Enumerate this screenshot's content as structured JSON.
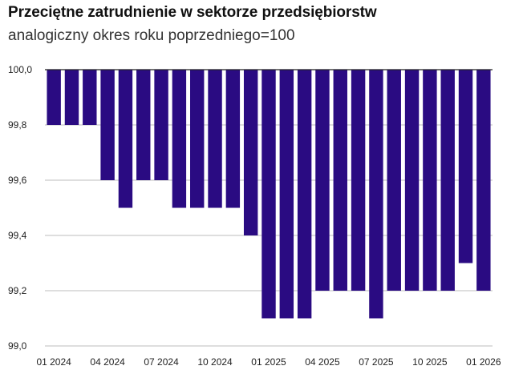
{
  "chart_data": {
    "type": "bar",
    "title": "Przeciętne zatrudnienie w sektorze przedsiębiorstw",
    "subtitle": "analogiczny okres roku poprzedniego=100",
    "categories": [
      "01 2024",
      "02 2024",
      "03 2024",
      "04 2024",
      "05 2024",
      "06 2024",
      "07 2024",
      "08 2024",
      "09 2024",
      "10 2024",
      "11 2024",
      "12 2024",
      "01 2025",
      "02 2025",
      "03 2025",
      "04 2025",
      "05 2025",
      "06 2025",
      "07 2025",
      "08 2025",
      "09 2025",
      "10 2025",
      "11 2025",
      "12 2025",
      "01 2026"
    ],
    "x_tick_labels": [
      "01 2024",
      "04 2024",
      "07 2024",
      "10 2024",
      "01 2025",
      "04 2025",
      "07 2025",
      "10 2025",
      "01 2026"
    ],
    "values": [
      99.8,
      99.8,
      99.8,
      99.6,
      99.5,
      99.6,
      99.6,
      99.5,
      99.5,
      99.5,
      99.5,
      99.4,
      99.1,
      99.1,
      99.1,
      99.2,
      99.2,
      99.2,
      99.1,
      99.2,
      99.2,
      99.2,
      99.2,
      99.3,
      99.2
    ],
    "baseline": 100.0,
    "ylim": [
      99.0,
      100.0
    ],
    "y_ticks": [
      "100,0",
      "99,8",
      "99,6",
      "99,4",
      "99,2",
      "99,0"
    ],
    "y_tick_values": [
      100.0,
      99.8,
      99.6,
      99.4,
      99.2,
      99.0
    ],
    "grid": true,
    "bar_color": "#2a0b82",
    "grid_color": "#bdbdbd",
    "baseline_color": "#222222"
  }
}
